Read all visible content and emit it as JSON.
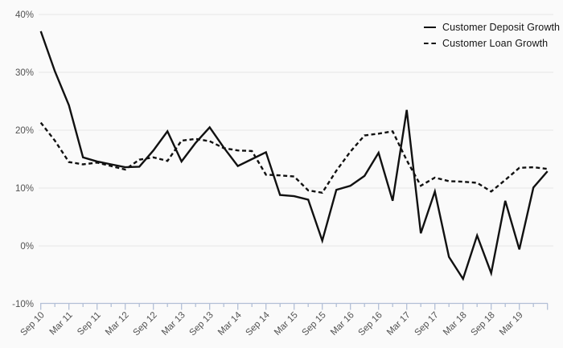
{
  "chart_data": {
    "type": "line",
    "title": "",
    "xlabel": "",
    "ylabel": "",
    "ylim": [
      -10,
      40
    ],
    "grid": "horizontal",
    "legend_position": "top-right",
    "categories": [
      "Sep-10",
      "Dec-10",
      "Mar-11",
      "Jun-11",
      "Sep-11",
      "Dec-11",
      "Mar-12",
      "Jun-12",
      "Sep-12",
      "Dec-12",
      "Mar-13",
      "Jun-13",
      "Sep-13",
      "Dec-13",
      "Mar-14",
      "Jun-14",
      "Sep-14",
      "Dec-14",
      "Mar-15",
      "Jun-15",
      "Sep-15",
      "Dec-15",
      "Mar-16",
      "Jun-16",
      "Sep-16",
      "Dec-16",
      "Mar-17",
      "Jun-17",
      "Sep-17",
      "Dec-17",
      "Mar-18",
      "Jun-18",
      "Sep-18",
      "Dec-18",
      "Mar-19",
      "Jun-19",
      "Sep-19"
    ],
    "series": [
      {
        "name": "Customer Deposit Growth",
        "style": "solid",
        "values": [
          37.1,
          30.2,
          24.3,
          15.3,
          14.6,
          14.1,
          13.6,
          13.7,
          16.5,
          19.8,
          14.6,
          17.8,
          20.5,
          17.0,
          13.8,
          15.0,
          16.2,
          8.8,
          8.6,
          8.0,
          0.9,
          9.7,
          10.4,
          12.1,
          16.1,
          7.8,
          23.5,
          2.2,
          9.4,
          -1.9,
          -5.7,
          1.8,
          -4.7,
          7.8,
          -0.6,
          10.1,
          12.9
        ]
      },
      {
        "name": "Customer Loan Growth",
        "style": "dashed",
        "values": [
          21.3,
          18.2,
          14.5,
          14.1,
          14.4,
          13.8,
          13.2,
          14.9,
          15.3,
          14.7,
          18.2,
          18.5,
          18.1,
          16.9,
          16.5,
          16.4,
          12.3,
          12.2,
          12.0,
          9.6,
          9.2,
          13.0,
          16.3,
          19.1,
          19.4,
          19.8,
          14.8,
          10.4,
          11.8,
          11.2,
          11.1,
          10.9,
          9.4,
          11.4,
          13.5,
          13.6,
          13.3
        ]
      }
    ],
    "x_tick_labels": [
      "Sep 10",
      "Mar 11",
      "Sep 11",
      "Mar 12",
      "Sep 12",
      "Mar 13",
      "Sep 13",
      "Mar 14",
      "Sep 14",
      "Mar 15",
      "Sep 15",
      "Mar 16",
      "Sep 16",
      "Mar 17",
      "Sep 17",
      "Mar 18",
      "Sep 18",
      "Mar 19"
    ],
    "y_ticks": [
      {
        "value": -10,
        "label": "-10%"
      },
      {
        "value": 0,
        "label": "0%"
      },
      {
        "value": 10,
        "label": "10%"
      },
      {
        "value": 20,
        "label": "20%"
      },
      {
        "value": 30,
        "label": "30%"
      },
      {
        "value": 40,
        "label": "40%"
      }
    ],
    "colors": {
      "line": "#111111",
      "grid": "#e7e7e7",
      "axis": "#b3bfd6",
      "tick_label": "#525252",
      "background": "#fafafa"
    }
  },
  "legend": {
    "items": [
      {
        "label": "Customer Deposit Growth",
        "dash": "solid"
      },
      {
        "label": "Customer Loan Growth",
        "dash": "dashed"
      }
    ]
  }
}
